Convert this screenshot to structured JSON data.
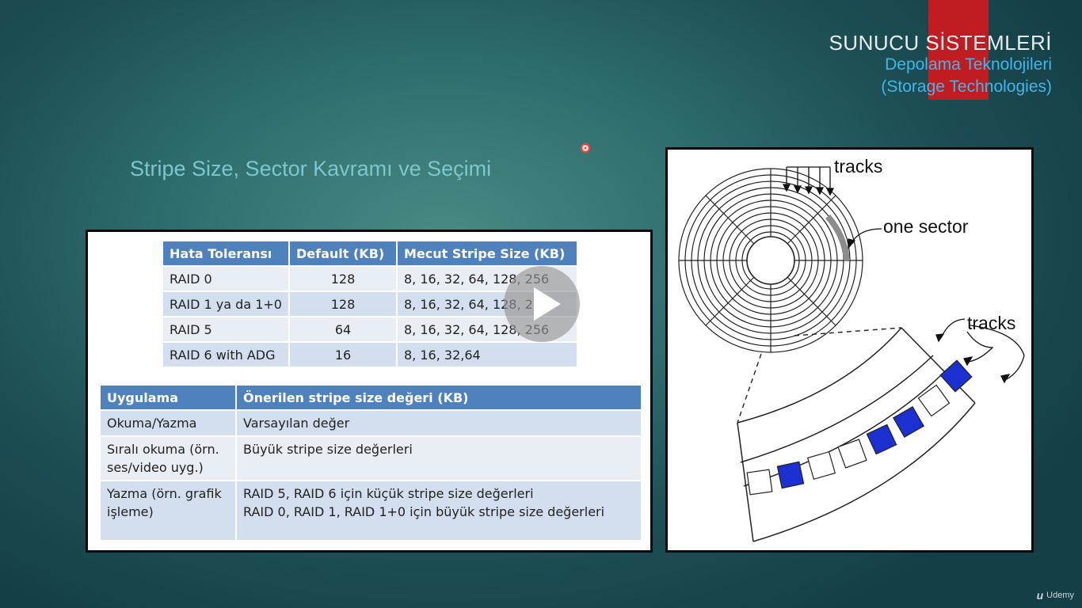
{
  "header": {
    "course_title": "SUNUCU SİSTEMLERİ",
    "section_title_line1": "Depolama Teknolojileri",
    "section_title_line2": "(Storage Technologies)"
  },
  "slide_title": "Stripe Size, Sector Kavramı ve Seçimi",
  "table_raid": {
    "headers": [
      "Hata Toleransı",
      "Default (KB)",
      "Mecut Stripe Size (KB)"
    ],
    "rows": [
      [
        "RAID 0",
        "128",
        "8, 16, 32, 64, 128, 256"
      ],
      [
        "RAID 1 ya da 1+0",
        "128",
        "8, 16, 32, 64, 128, 256"
      ],
      [
        "RAID 5",
        "64",
        "8, 16, 32, 64, 128, 256"
      ],
      [
        "RAID 6 with ADG",
        "16",
        "8, 16, 32,64"
      ]
    ]
  },
  "table_app": {
    "headers": [
      "Uygulama",
      "Önerilen stripe size değeri (KB)"
    ],
    "rows": [
      {
        "app": "Okuma/Yazma",
        "value_lines": [
          "Varsayılan değer"
        ]
      },
      {
        "app_lines": [
          "Sıralı okuma (örn.",
          "ses/video uyg.)"
        ],
        "value_lines": [
          "Büyük stripe size değerleri"
        ]
      },
      {
        "app_lines": [
          "Yazma (örn. grafik",
          "işleme)"
        ],
        "value_lines": [
          "RAID 5, RAID 6  için küçük stripe size değerleri",
          "RAID 0, RAID 1, RAID 1+0 için büyük stripe size değerleri"
        ]
      }
    ]
  },
  "diagram": {
    "label_tracks_top": "tracks",
    "label_sector": "one sector",
    "label_tracks_bottom": "tracks"
  },
  "video": {
    "play_icon": "play-icon"
  },
  "brand": {
    "name": "Udemy",
    "mark": "u"
  }
}
